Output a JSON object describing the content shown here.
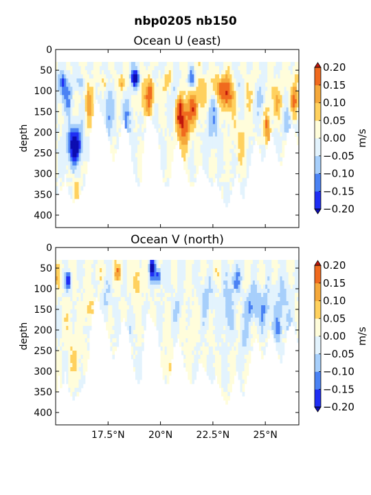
{
  "suptitle": "nbp0205 nb150",
  "chart_data": [
    {
      "type": "heatmap",
      "title": "Ocean U (east)",
      "ylabel": "depth",
      "xlabel": "",
      "y_inverted": true,
      "ylim": [
        430,
        0
      ],
      "xlim": [
        15.0,
        26.6
      ],
      "y_ticks": [
        "0",
        "50",
        "100",
        "150",
        "200",
        "250",
        "300",
        "350",
        "400"
      ],
      "y_tick_values": [
        0,
        50,
        100,
        150,
        200,
        250,
        300,
        350,
        400
      ],
      "x_ticks": [],
      "x_tick_values": [
        17.5,
        20.0,
        22.5,
        25.0
      ],
      "colorbar": {
        "label": "m/s",
        "ticks": [
          "0.20",
          "0.15",
          "0.10",
          "0.05",
          "0.00",
          "−0.05",
          "−0.10",
          "−0.15",
          "−0.20"
        ],
        "levels": [
          -0.2,
          -0.15,
          -0.1,
          -0.05,
          0.0,
          0.05,
          0.1,
          0.15,
          0.2
        ],
        "colors": [
          "#1f2ef4",
          "#4a82f4",
          "#a7cffb",
          "#e3f3fd",
          "#fffddb",
          "#ffd15e",
          "#f5a83a",
          "#f06a1e"
        ],
        "under_color": "#0d0db0",
        "over_color": "#c0180d"
      },
      "field": {
        "x_start": 15.0,
        "x_end": 26.6,
        "dx": 0.1,
        "depth_top": 30,
        "dz": 10,
        "bottom_depth": [
          350,
          310,
          340,
          330,
          300,
          330,
          350,
          360,
          365,
          355,
          360,
          350,
          340,
          330,
          300,
          265,
          200,
          160,
          130,
          120,
          130,
          150,
          160,
          175,
          200,
          220,
          245,
          265,
          250,
          240,
          210,
          175,
          165,
          185,
          200,
          230,
          265,
          300,
          320,
          330,
          320,
          250,
          200,
          160,
          160,
          170,
          180,
          190,
          200,
          240,
          285,
          320,
          330,
          325,
          310,
          270,
          240,
          230,
          220,
          240,
          260,
          285,
          300,
          320,
          330,
          330,
          320,
          300,
          280,
          275,
          285,
          300,
          310,
          320,
          330,
          320,
          310,
          325,
          340,
          355,
          370,
          380,
          370,
          350,
          330,
          310,
          300,
          320,
          350,
          355,
          330,
          310,
          280,
          250,
          225,
          220,
          230,
          250,
          270,
          260,
          240,
          220,
          200,
          210,
          230,
          250,
          265,
          275,
          260,
          230,
          200,
          185,
          180,
          190,
          210,
          230,
          220,
          200,
          180,
          175,
          160,
          150,
          140
        ],
        "u_blobs": [
          [
            15.3,
            80,
            0.2,
            25,
            -0.1
          ],
          [
            15.9,
            230,
            0.35,
            45,
            -0.26
          ],
          [
            15.5,
            110,
            0.25,
            40,
            -0.12
          ],
          [
            16.0,
            330,
            0.2,
            25,
            0.07
          ],
          [
            16.6,
            130,
            0.2,
            50,
            0.12
          ],
          [
            16.2,
            80,
            0.2,
            20,
            -0.08
          ],
          [
            17.3,
            80,
            0.15,
            20,
            0.08
          ],
          [
            17.5,
            150,
            0.25,
            60,
            -0.1
          ],
          [
            18.1,
            80,
            0.2,
            20,
            0.11
          ],
          [
            18.4,
            170,
            0.3,
            50,
            -0.08
          ],
          [
            18.8,
            70,
            0.2,
            25,
            -0.24
          ],
          [
            19.2,
            120,
            0.3,
            40,
            0.08
          ],
          [
            19.5,
            100,
            0.2,
            50,
            0.15
          ],
          [
            19.7,
            60,
            0.15,
            20,
            -0.1
          ],
          [
            20.3,
            80,
            0.3,
            30,
            0.06
          ],
          [
            20.7,
            110,
            0.2,
            40,
            -0.09
          ],
          [
            21.1,
            180,
            0.3,
            60,
            0.2
          ],
          [
            20.9,
            140,
            0.2,
            35,
            0.14
          ],
          [
            21.6,
            140,
            0.25,
            40,
            0.17
          ],
          [
            21.5,
            70,
            0.15,
            20,
            -0.14
          ],
          [
            22.0,
            100,
            0.25,
            40,
            0.08
          ],
          [
            22.5,
            170,
            0.3,
            60,
            -0.08
          ],
          [
            22.8,
            90,
            0.35,
            30,
            0.12
          ],
          [
            23.2,
            110,
            0.3,
            40,
            0.19
          ],
          [
            23.8,
            220,
            0.3,
            50,
            0.07
          ],
          [
            23.8,
            80,
            0.2,
            30,
            -0.06
          ],
          [
            24.2,
            100,
            0.25,
            40,
            0.06
          ],
          [
            24.8,
            120,
            0.2,
            35,
            -0.09
          ],
          [
            25.1,
            190,
            0.15,
            40,
            0.17
          ],
          [
            25.5,
            120,
            0.3,
            40,
            0.1
          ],
          [
            26.1,
            180,
            0.25,
            40,
            -0.07
          ],
          [
            26.4,
            120,
            0.2,
            40,
            0.16
          ],
          [
            26.4,
            60,
            0.2,
            20,
            0.04
          ]
        ],
        "v_blobs": [
          [
            15.1,
            70,
            0.15,
            25,
            0.08
          ],
          [
            15.6,
            80,
            0.15,
            20,
            -0.18
          ],
          [
            15.7,
            200,
            0.3,
            60,
            0.03
          ],
          [
            16.6,
            150,
            0.25,
            40,
            0.07
          ],
          [
            16.0,
            270,
            0.3,
            50,
            0.05
          ],
          [
            17.0,
            60,
            0.2,
            20,
            0.06
          ],
          [
            17.4,
            120,
            0.2,
            40,
            -0.06
          ],
          [
            18.0,
            60,
            0.2,
            20,
            0.13
          ],
          [
            18.4,
            250,
            0.2,
            60,
            -0.05
          ],
          [
            18.9,
            80,
            0.2,
            40,
            0.09
          ],
          [
            19.6,
            50,
            0.15,
            25,
            -0.22
          ],
          [
            19.9,
            70,
            0.15,
            20,
            -0.19
          ],
          [
            20.4,
            290,
            0.25,
            40,
            0.07
          ],
          [
            20.8,
            150,
            0.2,
            40,
            -0.06
          ],
          [
            21.4,
            200,
            0.3,
            60,
            0.03
          ],
          [
            22.2,
            120,
            0.3,
            50,
            -0.07
          ],
          [
            23.2,
            150,
            0.25,
            60,
            -0.09
          ],
          [
            23.6,
            80,
            0.2,
            30,
            -0.13
          ],
          [
            24.0,
            210,
            0.2,
            60,
            -0.06
          ],
          [
            24.4,
            140,
            0.3,
            40,
            -0.11
          ],
          [
            25.0,
            150,
            0.3,
            50,
            -0.09
          ],
          [
            25.8,
            130,
            0.3,
            50,
            -0.07
          ],
          [
            25.6,
            200,
            0.2,
            40,
            -0.1
          ],
          [
            26.3,
            200,
            0.3,
            60,
            -0.04
          ],
          [
            22.5,
            60,
            0.3,
            20,
            0.03
          ]
        ]
      }
    },
    {
      "type": "heatmap",
      "title": "Ocean V (north)",
      "ylabel": "depth",
      "xlabel": "",
      "y_inverted": true,
      "ylim": [
        430,
        0
      ],
      "xlim": [
        15.0,
        26.6
      ],
      "y_ticks": [
        "0",
        "50",
        "100",
        "150",
        "200",
        "250",
        "300",
        "350",
        "400"
      ],
      "y_tick_values": [
        0,
        50,
        100,
        150,
        200,
        250,
        300,
        350,
        400
      ],
      "x_ticks": [
        "17.5°N",
        "20°N",
        "22.5°N",
        "25°N"
      ],
      "x_tick_values": [
        17.5,
        20.0,
        22.5,
        25.0
      ],
      "colorbar": {
        "label": "m/s",
        "ticks": [
          "0.20",
          "0.15",
          "0.10",
          "0.05",
          "0.00",
          "−0.05",
          "−0.10",
          "−0.15",
          "−0.20"
        ],
        "levels": [
          -0.2,
          -0.15,
          -0.1,
          -0.05,
          0.0,
          0.05,
          0.1,
          0.15,
          0.2
        ],
        "colors": [
          "#1f2ef4",
          "#4a82f4",
          "#a7cffb",
          "#e3f3fd",
          "#fffddb",
          "#ffd15e",
          "#f5a83a",
          "#f06a1e"
        ],
        "under_color": "#0d0db0",
        "over_color": "#c0180d"
      }
    }
  ]
}
